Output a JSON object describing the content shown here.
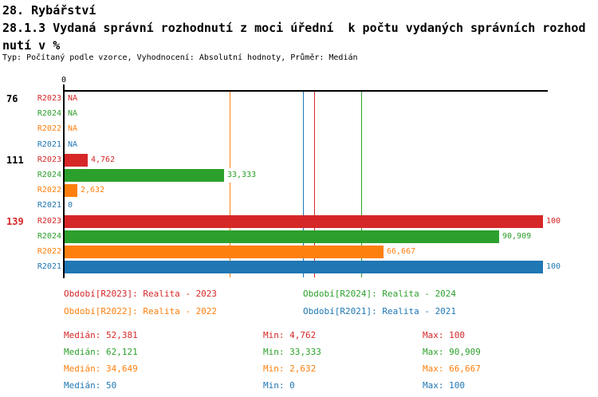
{
  "header": {
    "title_line1": "28. Rybářství",
    "title_line2": "28.1.3 Vydaná správní rozhodnutí z moci úřední  k počtu vydaných správních rozhod",
    "title_line3": "nutí v %",
    "subtitle": "Typ: Počítaný podle vzorce, Vyhodnocení: Absolutní hodnoty, Průměr: Medián"
  },
  "colors": {
    "R2023": "#d62728",
    "R2024": "#2ca02c",
    "R2022": "#ff7f0e",
    "R2021": "#1f77b4",
    "axis": "#000000",
    "background": "#ffffff"
  },
  "chart_data": {
    "type": "bar",
    "orientation": "horizontal",
    "xlim": [
      0,
      100
    ],
    "axis_zero_label": "0",
    "grid": false,
    "series_order": [
      "R2023",
      "R2024",
      "R2022",
      "R2021"
    ],
    "groups": [
      {
        "label": "76",
        "label_color": "#000000",
        "bars": [
          {
            "series": "R2023",
            "value": null,
            "display": "NA"
          },
          {
            "series": "R2024",
            "value": null,
            "display": "NA"
          },
          {
            "series": "R2022",
            "value": null,
            "display": "NA"
          },
          {
            "series": "R2021",
            "value": null,
            "display": "NA"
          }
        ]
      },
      {
        "label": "111",
        "label_color": "#000000",
        "bars": [
          {
            "series": "R2023",
            "value": 4.762,
            "display": "4,762"
          },
          {
            "series": "R2024",
            "value": 33.333,
            "display": "33,333"
          },
          {
            "series": "R2022",
            "value": 2.632,
            "display": "2,632"
          },
          {
            "series": "R2021",
            "value": 0,
            "display": "0"
          }
        ]
      },
      {
        "label": "139",
        "label_color": "#d62728",
        "bars": [
          {
            "series": "R2023",
            "value": 100,
            "display": "100"
          },
          {
            "series": "R2024",
            "value": 90.909,
            "display": "90,909"
          },
          {
            "series": "R2022",
            "value": 66.667,
            "display": "66,667"
          },
          {
            "series": "R2021",
            "value": 100,
            "display": "100"
          }
        ]
      }
    ],
    "median_lines": [
      {
        "series": "R2023",
        "value": 52.381
      },
      {
        "series": "R2024",
        "value": 62.121
      },
      {
        "series": "R2022",
        "value": 34.649
      },
      {
        "series": "R2021",
        "value": 50
      }
    ]
  },
  "legend": [
    {
      "series": "R2023",
      "text": "Období[R2023]: Realita - 2023"
    },
    {
      "series": "R2024",
      "text": "Období[R2024]: Realita - 2024"
    },
    {
      "series": "R2022",
      "text": "Období[R2022]: Realita - 2022"
    },
    {
      "series": "R2021",
      "text": "Období[R2021]: Realita - 2021"
    }
  ],
  "stats": [
    {
      "series": "R2023",
      "median": "Medián: 52,381",
      "min": "Min: 4,762",
      "max": "Max: 100"
    },
    {
      "series": "R2024",
      "median": "Medián: 62,121",
      "min": "Min: 33,333",
      "max": "Max: 90,909"
    },
    {
      "series": "R2022",
      "median": "Medián: 34,649",
      "min": "Min: 2,632",
      "max": "Max: 66,667"
    },
    {
      "series": "R2021",
      "median": "Medián: 50",
      "min": "Min: 0",
      "max": "Max: 100"
    }
  ]
}
